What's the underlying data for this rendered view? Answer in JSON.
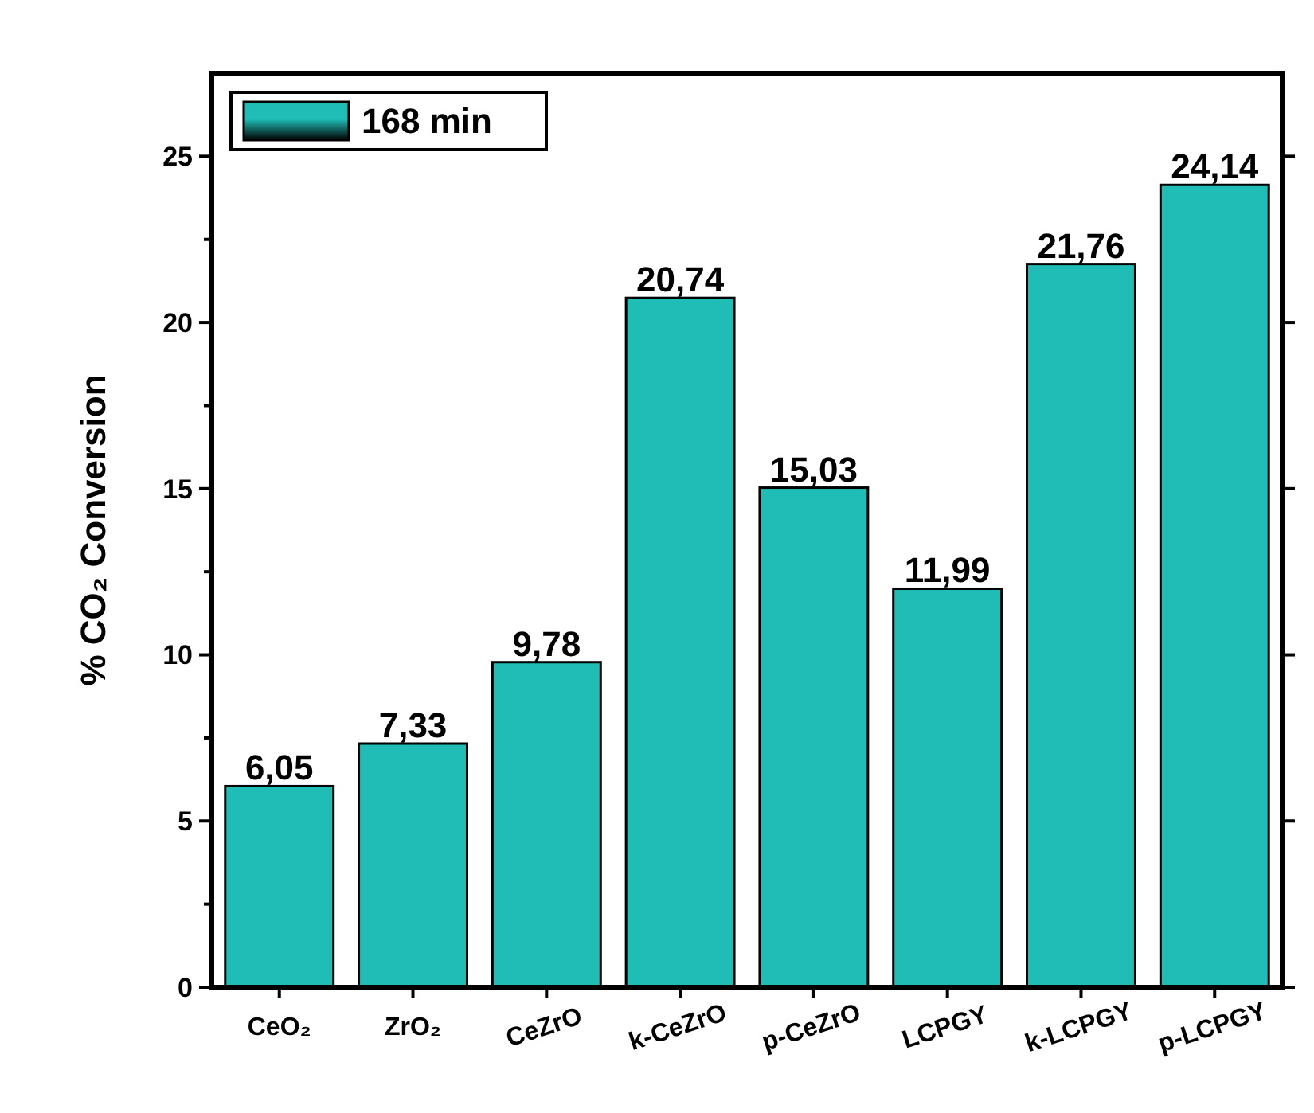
{
  "chart_data": {
    "type": "bar",
    "ylabel": "% CO₂ Conversion",
    "categories": [
      "CeO₂",
      "ZrO₂",
      "CeZrO",
      "k-CeZrO",
      "p-CeZrO",
      "LCPGY",
      "k-LCPGY",
      "p-LCPGY"
    ],
    "series": [
      {
        "name": "168 min",
        "color": "#1fbdb5",
        "values": [
          6.05,
          7.33,
          9.78,
          20.74,
          15.03,
          11.99,
          21.76,
          24.14
        ],
        "value_labels": [
          "6,05",
          "7,33",
          "9,78",
          "20,74",
          "15,03",
          "11,99",
          "21,76",
          "24,14"
        ]
      }
    ],
    "ylim": [
      0,
      27.5
    ],
    "yticks": [
      0,
      5,
      10,
      15,
      20,
      25
    ],
    "legend": "top left",
    "grid": false
  }
}
